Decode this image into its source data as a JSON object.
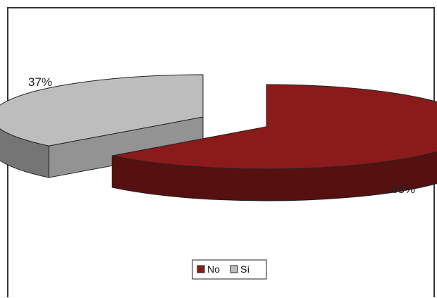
{
  "chart_data": {
    "type": "pie",
    "style": "3d-exploded",
    "title": "",
    "categories": [
      "No",
      "Sí"
    ],
    "values": [
      63,
      37
    ],
    "value_labels": [
      "63%",
      "37%"
    ],
    "colors": {
      "No": "#8b1a1a",
      "Sí": "#bdbdbd"
    },
    "legend": {
      "placement": "bottom",
      "entries": [
        "No",
        "Sí"
      ]
    }
  }
}
